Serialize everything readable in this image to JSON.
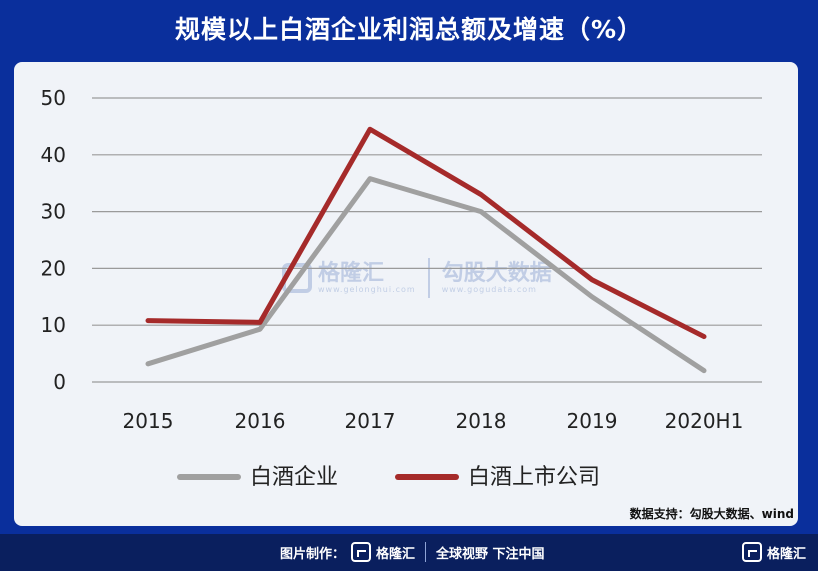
{
  "title": "规模以上白酒企业利润总额及增速（%）",
  "source": "数据支持：勾股大数据、wind",
  "watermark": {
    "brand1": "格隆汇",
    "url1": "www.gelonghui.com",
    "brand2": "勾股大数据",
    "url2": "www.gogudata.com"
  },
  "footer": {
    "made_by": "图片制作：",
    "brand": "格隆汇",
    "slogan": "全球视野 下注中国"
  },
  "chart_data": {
    "type": "line",
    "categories": [
      "2015",
      "2016",
      "2017",
      "2018",
      "2019",
      "2020H1"
    ],
    "ylim": [
      0,
      50
    ],
    "yticks": [
      0,
      10,
      20,
      30,
      40,
      50
    ],
    "grid": true,
    "legend_position": "bottom",
    "series": [
      {
        "name": "白酒企业",
        "color": "#a0a0a0",
        "values": [
          3.2,
          9.3,
          35.8,
          30.0,
          15.0,
          2.0
        ]
      },
      {
        "name": "白酒上市公司",
        "color": "#a52a2a",
        "values": [
          10.8,
          10.5,
          44.5,
          33.0,
          18.0,
          8.0
        ]
      }
    ]
  }
}
